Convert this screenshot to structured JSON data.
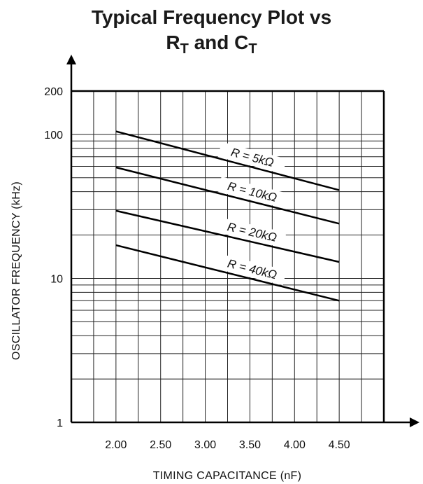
{
  "title": {
    "line1": "Typical Frequency Plot vs",
    "line2_a": "R",
    "line2_a_sub": "T",
    "line2_b": " and C",
    "line2_b_sub": "T"
  },
  "chart_data": {
    "type": "line",
    "title": "Typical Frequency Plot vs RT and CT",
    "xlabel": "TIMING CAPACITANCE   (nF)",
    "ylabel": "OSCILLATOR FREQUENCY   (kHz)",
    "x_scale": "linear",
    "y_scale": "log",
    "xlim": [
      1.5,
      5.0
    ],
    "ylim": [
      1,
      200
    ],
    "x_ticks": [
      2.0,
      2.5,
      3.0,
      3.5,
      4.0,
      4.5
    ],
    "x_tick_labels": [
      "2.00",
      "2.50",
      "3.00",
      "3.50",
      "4.00",
      "4.50"
    ],
    "y_ticks": [
      1,
      10,
      100,
      200
    ],
    "y_tick_labels": [
      "1",
      "10",
      "100",
      "200"
    ],
    "grid": true,
    "series": [
      {
        "name": "R = 5kΩ",
        "x": [
          2.0,
          4.5
        ],
        "y": [
          105,
          41
        ]
      },
      {
        "name": "R = 10kΩ",
        "x": [
          2.0,
          4.5
        ],
        "y": [
          59,
          24
        ]
      },
      {
        "name": "R = 20kΩ",
        "x": [
          2.0,
          4.5
        ],
        "y": [
          29.5,
          13
        ]
      },
      {
        "name": "R = 40kΩ",
        "x": [
          2.0,
          4.5
        ],
        "y": [
          17,
          7
        ]
      }
    ]
  }
}
